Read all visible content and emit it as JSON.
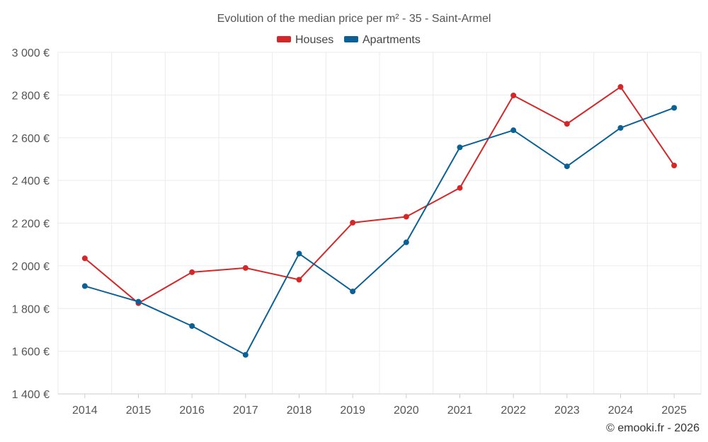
{
  "chart_data": {
    "type": "line",
    "title": "Evolution of the median price per m² - 35 - Saint-Armel",
    "categories": [
      "2014",
      "2015",
      "2016",
      "2017",
      "2018",
      "2019",
      "2020",
      "2021",
      "2022",
      "2023",
      "2024",
      "2025"
    ],
    "series": [
      {
        "name": "Houses",
        "color": "#d62728",
        "values": [
          2035,
          1825,
          1970,
          1990,
          1935,
          2202,
          2230,
          2365,
          2798,
          2665,
          2838,
          2470
        ]
      },
      {
        "name": "Apartments",
        "color": "#0b6196",
        "values": [
          1905,
          1832,
          1718,
          1583,
          2057,
          1880,
          2110,
          2555,
          2635,
          2466,
          2646,
          2740
        ]
      }
    ],
    "ylim": [
      1400,
      3000
    ],
    "yticks": [
      1400,
      1600,
      1800,
      2000,
      2200,
      2400,
      2600,
      2800,
      3000
    ],
    "ytick_labels": [
      "1 400 €",
      "1 600 €",
      "1 800 €",
      "2 000 €",
      "2 200 €",
      "2 400 €",
      "2 600 €",
      "2 800 €",
      "3 000 €"
    ],
    "grid": true,
    "legend_position": "top-center",
    "credit": "© emooki.fr - 2026"
  }
}
